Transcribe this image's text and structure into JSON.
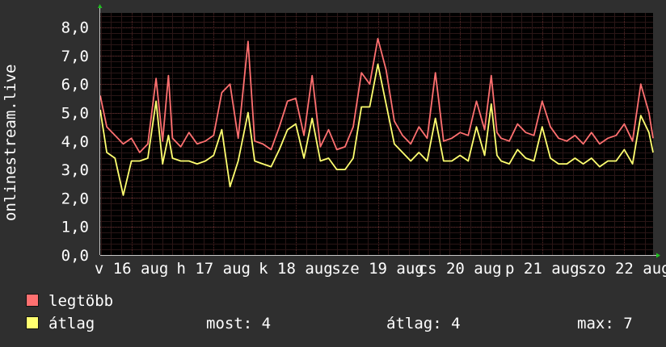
{
  "chart_data": {
    "type": "line",
    "ylabel": "onlinestream.live",
    "y_ticks": [
      "0,0",
      "1,0",
      "2,0",
      "3,0",
      "4,0",
      "5,0",
      "6,0",
      "7,0",
      "8,0"
    ],
    "ylim": [
      0,
      8.5
    ],
    "x_ticks": [
      "v 16 aug",
      "h 17 aug",
      "k 18 aug",
      "sze 19 aug",
      "cs 20 aug",
      "p 21 aug",
      "szo 22 aug"
    ],
    "x_tick_days": [
      0,
      1,
      2,
      3,
      4,
      5,
      6
    ],
    "xlim": [
      -0.38,
      6.35
    ],
    "grid": true,
    "colors": {
      "background": "#2f2f2f",
      "plot": "#000000",
      "grid": "#4a3030",
      "axis": "#c8c8c8",
      "legtobb": "#ff7070",
      "atlag": "#ffff70",
      "arrow": "#20c020"
    },
    "series": [
      {
        "name": "legtöbb",
        "color": "#ff7070",
        "x": [
          -0.38,
          -0.3,
          -0.2,
          -0.1,
          0.0,
          0.1,
          0.2,
          0.3,
          0.38,
          0.45,
          0.5,
          0.6,
          0.7,
          0.8,
          0.9,
          1.0,
          1.1,
          1.2,
          1.3,
          1.42,
          1.5,
          1.6,
          1.7,
          1.8,
          1.9,
          2.0,
          2.1,
          2.2,
          2.3,
          2.4,
          2.5,
          2.6,
          2.7,
          2.8,
          2.9,
          3.0,
          3.1,
          3.2,
          3.3,
          3.4,
          3.5,
          3.6,
          3.7,
          3.8,
          3.9,
          4.0,
          4.1,
          4.2,
          4.3,
          4.38,
          4.45,
          4.5,
          4.6,
          4.7,
          4.8,
          4.9,
          5.0,
          5.1,
          5.2,
          5.3,
          5.4,
          5.5,
          5.6,
          5.7,
          5.8,
          5.9,
          6.0,
          6.1,
          6.2,
          6.3,
          6.35
        ],
        "values": [
          5.6,
          4.5,
          4.2,
          3.9,
          4.1,
          3.6,
          3.9,
          6.2,
          4.0,
          6.3,
          4.1,
          3.8,
          4.3,
          3.9,
          4.0,
          4.2,
          5.7,
          6.0,
          4.1,
          7.5,
          4.0,
          3.9,
          3.7,
          4.5,
          5.4,
          5.5,
          4.2,
          6.3,
          3.8,
          4.4,
          3.7,
          3.8,
          4.5,
          6.4,
          6.0,
          7.6,
          6.5,
          4.7,
          4.2,
          3.9,
          4.5,
          4.1,
          6.4,
          4.0,
          4.1,
          4.3,
          4.2,
          5.4,
          4.4,
          6.3,
          4.3,
          4.1,
          4.0,
          4.6,
          4.3,
          4.2,
          5.4,
          4.5,
          4.1,
          4.0,
          4.2,
          3.9,
          4.3,
          3.9,
          4.1,
          4.2,
          4.6,
          4.0,
          6.0,
          5.0,
          4.1
        ]
      },
      {
        "name": "átlag",
        "color": "#ffff70",
        "x": [
          -0.38,
          -0.3,
          -0.2,
          -0.1,
          0.0,
          0.1,
          0.2,
          0.3,
          0.38,
          0.45,
          0.5,
          0.6,
          0.7,
          0.8,
          0.9,
          1.0,
          1.1,
          1.2,
          1.3,
          1.42,
          1.5,
          1.6,
          1.7,
          1.8,
          1.9,
          2.0,
          2.1,
          2.2,
          2.3,
          2.4,
          2.5,
          2.6,
          2.7,
          2.8,
          2.9,
          3.0,
          3.1,
          3.2,
          3.3,
          3.4,
          3.5,
          3.6,
          3.7,
          3.8,
          3.9,
          4.0,
          4.1,
          4.2,
          4.3,
          4.38,
          4.45,
          4.5,
          4.6,
          4.7,
          4.8,
          4.9,
          5.0,
          5.1,
          5.2,
          5.3,
          5.4,
          5.5,
          5.6,
          5.7,
          5.8,
          5.9,
          6.0,
          6.1,
          6.2,
          6.3,
          6.35
        ],
        "values": [
          5.1,
          3.6,
          3.4,
          2.1,
          3.3,
          3.3,
          3.4,
          5.4,
          3.2,
          4.2,
          3.4,
          3.3,
          3.3,
          3.2,
          3.3,
          3.5,
          4.4,
          2.4,
          3.3,
          5.0,
          3.3,
          3.2,
          3.1,
          3.7,
          4.4,
          4.6,
          3.4,
          4.8,
          3.3,
          3.4,
          3.0,
          3.0,
          3.4,
          5.2,
          5.2,
          6.7,
          5.3,
          3.9,
          3.6,
          3.3,
          3.6,
          3.3,
          4.8,
          3.3,
          3.3,
          3.5,
          3.3,
          4.5,
          3.5,
          5.3,
          3.5,
          3.3,
          3.2,
          3.7,
          3.4,
          3.3,
          4.5,
          3.4,
          3.2,
          3.2,
          3.4,
          3.2,
          3.4,
          3.1,
          3.3,
          3.3,
          3.7,
          3.2,
          4.9,
          4.3,
          3.6
        ]
      }
    ]
  },
  "legend": {
    "items": [
      {
        "label": "legtöbb",
        "color": "#ff7070"
      },
      {
        "label": "átlag",
        "color": "#ffff70"
      }
    ]
  },
  "stats": {
    "most": "most: 4",
    "atlag": "átlag: 4",
    "max": "max: 7"
  }
}
